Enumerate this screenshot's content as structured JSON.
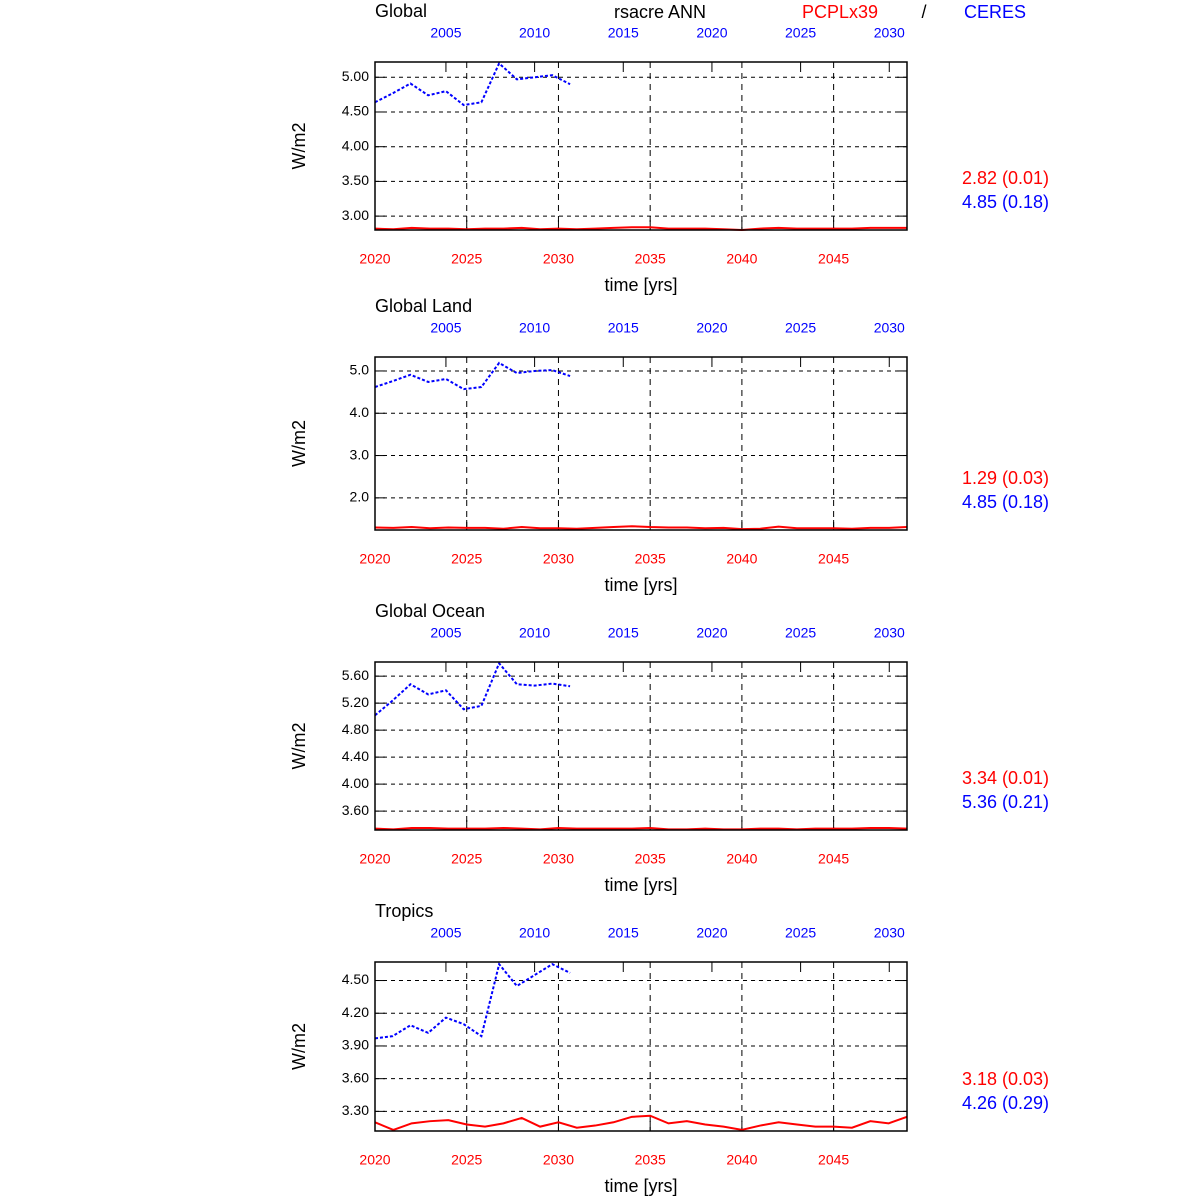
{
  "chart_data": [
    {
      "type": "line",
      "title": "Global",
      "subtitle": "rsacre ANN",
      "legend_separator": "/",
      "ylabel": "W/m2",
      "xlabel": "time [yrs]",
      "grid": true,
      "xlim": [
        2020,
        2049
      ],
      "xticks": [
        2020,
        2025,
        2030,
        2035,
        2040,
        2045
      ],
      "x2lim": [
        2001,
        2031
      ],
      "x2ticks": [
        2005,
        2010,
        2015,
        2020,
        2025,
        2030
      ],
      "ylim": [
        2.8,
        5.22
      ],
      "yticks": [
        {
          "value": 3,
          "label": "3.00"
        },
        {
          "value": 3.5,
          "label": "3.50"
        },
        {
          "value": 4,
          "label": "4.00"
        },
        {
          "value": 4.5,
          "label": "4.50"
        },
        {
          "value": 5,
          "label": "5.00"
        }
      ],
      "series": [
        {
          "name": "PCPLx39",
          "color": "#ff0000",
          "line_style": "solid",
          "x": [
            2020,
            2021,
            2022,
            2023,
            2024,
            2025,
            2026,
            2027,
            2028,
            2029,
            2030,
            2031,
            2032,
            2033,
            2034,
            2035,
            2036,
            2037,
            2038,
            2039,
            2040,
            2041,
            2042,
            2043,
            2044,
            2045,
            2046,
            2047,
            2048,
            2049
          ],
          "values": [
            2.82,
            2.81,
            2.83,
            2.82,
            2.82,
            2.81,
            2.82,
            2.82,
            2.83,
            2.81,
            2.82,
            2.81,
            2.82,
            2.83,
            2.84,
            2.84,
            2.82,
            2.82,
            2.82,
            2.81,
            2.8,
            2.82,
            2.83,
            2.82,
            2.82,
            2.82,
            2.82,
            2.83,
            2.83,
            2.83
          ]
        },
        {
          "name": "CERES",
          "color": "#0000ff",
          "line_style": "dashed",
          "axis": "x2",
          "x": [
            2001,
            2002,
            2003,
            2004,
            2005,
            2006,
            2007,
            2008,
            2009,
            2010,
            2011,
            2012
          ],
          "values": [
            4.64,
            4.77,
            4.91,
            4.74,
            4.8,
            4.6,
            4.64,
            5.2,
            4.97,
            5.0,
            5.03,
            4.9
          ]
        }
      ],
      "stats": [
        {
          "text": "2.82 (0.01)",
          "color": "#ff0000"
        },
        {
          "text": "4.85 (0.18)",
          "color": "#0000ff"
        }
      ]
    },
    {
      "type": "line",
      "title": "Global Land",
      "ylabel": "W/m2",
      "xlabel": "time [yrs]",
      "grid": true,
      "xlim": [
        2020,
        2049
      ],
      "xticks": [
        2020,
        2025,
        2030,
        2035,
        2040,
        2045
      ],
      "x2lim": [
        2001,
        2031
      ],
      "x2ticks": [
        2005,
        2010,
        2015,
        2020,
        2025,
        2030
      ],
      "ylim": [
        1.24,
        5.33
      ],
      "yticks": [
        {
          "value": 2,
          "label": "2.0"
        },
        {
          "value": 3,
          "label": "3.0"
        },
        {
          "value": 4,
          "label": "4.0"
        },
        {
          "value": 5,
          "label": "5.0"
        }
      ],
      "series": [
        {
          "color": "#ff0000",
          "line_style": "solid",
          "x": [
            2020,
            2021,
            2022,
            2023,
            2024,
            2025,
            2026,
            2027,
            2028,
            2029,
            2030,
            2031,
            2032,
            2033,
            2034,
            2035,
            2036,
            2037,
            2038,
            2039,
            2040,
            2041,
            2042,
            2043,
            2044,
            2045,
            2046,
            2047,
            2048,
            2049
          ],
          "values": [
            1.3,
            1.29,
            1.31,
            1.28,
            1.3,
            1.29,
            1.29,
            1.27,
            1.31,
            1.28,
            1.28,
            1.27,
            1.29,
            1.31,
            1.33,
            1.31,
            1.3,
            1.3,
            1.28,
            1.29,
            1.26,
            1.27,
            1.32,
            1.28,
            1.28,
            1.28,
            1.27,
            1.29,
            1.29,
            1.31
          ]
        },
        {
          "color": "#0000ff",
          "line_style": "dashed",
          "axis": "x2",
          "x": [
            2001,
            2002,
            2003,
            2004,
            2005,
            2006,
            2007,
            2008,
            2009,
            2010,
            2011,
            2012
          ],
          "values": [
            4.62,
            4.76,
            4.91,
            4.74,
            4.81,
            4.57,
            4.62,
            5.19,
            4.95,
            5.0,
            5.02,
            4.88
          ]
        }
      ],
      "stats": [
        {
          "text": "1.29 (0.03)",
          "color": "#ff0000"
        },
        {
          "text": "4.85 (0.18)",
          "color": "#0000ff"
        }
      ]
    },
    {
      "type": "line",
      "title": "Global Ocean",
      "ylabel": "W/m2",
      "xlabel": "time [yrs]",
      "grid": true,
      "xlim": [
        2020,
        2049
      ],
      "xticks": [
        2020,
        2025,
        2030,
        2035,
        2040,
        2045
      ],
      "x2lim": [
        2001,
        2031
      ],
      "x2ticks": [
        2005,
        2010,
        2015,
        2020,
        2025,
        2030
      ],
      "ylim": [
        3.32,
        5.81
      ],
      "yticks": [
        {
          "value": 3.6,
          "label": "3.60"
        },
        {
          "value": 4,
          "label": "4.00"
        },
        {
          "value": 4.4,
          "label": "4.40"
        },
        {
          "value": 4.8,
          "label": "4.80"
        },
        {
          "value": 5.2,
          "label": "5.20"
        },
        {
          "value": 5.6,
          "label": "5.60"
        }
      ],
      "series": [
        {
          "color": "#ff0000",
          "line_style": "solid",
          "x": [
            2020,
            2021,
            2022,
            2023,
            2024,
            2025,
            2026,
            2027,
            2028,
            2029,
            2030,
            2031,
            2032,
            2033,
            2034,
            2035,
            2036,
            2037,
            2038,
            2039,
            2040,
            2041,
            2042,
            2043,
            2044,
            2045,
            2046,
            2047,
            2048,
            2049
          ],
          "values": [
            3.34,
            3.33,
            3.35,
            3.35,
            3.34,
            3.34,
            3.34,
            3.35,
            3.34,
            3.33,
            3.35,
            3.34,
            3.34,
            3.34,
            3.34,
            3.35,
            3.33,
            3.33,
            3.34,
            3.33,
            3.33,
            3.34,
            3.34,
            3.33,
            3.34,
            3.34,
            3.34,
            3.35,
            3.35,
            3.34
          ]
        },
        {
          "color": "#0000ff",
          "line_style": "dashed",
          "axis": "x2",
          "x": [
            2001,
            2002,
            2003,
            2004,
            2005,
            2006,
            2007,
            2008,
            2009,
            2010,
            2011,
            2012
          ],
          "values": [
            5.02,
            5.24,
            5.48,
            5.33,
            5.39,
            5.11,
            5.16,
            5.79,
            5.48,
            5.46,
            5.49,
            5.45
          ]
        }
      ],
      "stats": [
        {
          "text": "3.34 (0.01)",
          "color": "#ff0000"
        },
        {
          "text": "5.36 (0.21)",
          "color": "#0000ff"
        }
      ]
    },
    {
      "type": "line",
      "title": "Tropics",
      "ylabel": "W/m2",
      "xlabel": "time [yrs]",
      "grid": true,
      "xlim": [
        2020,
        2049
      ],
      "xticks": [
        2020,
        2025,
        2030,
        2035,
        2040,
        2045
      ],
      "x2lim": [
        2001,
        2031
      ],
      "x2ticks": [
        2005,
        2010,
        2015,
        2020,
        2025,
        2030
      ],
      "ylim": [
        3.12,
        4.67
      ],
      "yticks": [
        {
          "value": 3.3,
          "label": "3.30"
        },
        {
          "value": 3.6,
          "label": "3.60"
        },
        {
          "value": 3.9,
          "label": "3.90"
        },
        {
          "value": 4.2,
          "label": "4.20"
        },
        {
          "value": 4.5,
          "label": "4.50"
        }
      ],
      "series": [
        {
          "color": "#ff0000",
          "line_style": "solid",
          "x": [
            2020,
            2021,
            2022,
            2023,
            2024,
            2025,
            2026,
            2027,
            2028,
            2029,
            2030,
            2031,
            2032,
            2033,
            2034,
            2035,
            2036,
            2037,
            2038,
            2039,
            2040,
            2041,
            2042,
            2043,
            2044,
            2045,
            2046,
            2047,
            2048,
            2049
          ],
          "values": [
            3.2,
            3.13,
            3.19,
            3.21,
            3.22,
            3.18,
            3.16,
            3.19,
            3.24,
            3.16,
            3.2,
            3.15,
            3.17,
            3.2,
            3.25,
            3.26,
            3.19,
            3.21,
            3.18,
            3.16,
            3.13,
            3.17,
            3.2,
            3.18,
            3.16,
            3.16,
            3.15,
            3.21,
            3.19,
            3.25
          ]
        },
        {
          "color": "#0000ff",
          "line_style": "dashed",
          "axis": "x2",
          "x": [
            2001,
            2002,
            2003,
            2004,
            2005,
            2006,
            2007,
            2008,
            2009,
            2010,
            2011,
            2012
          ],
          "values": [
            3.97,
            3.99,
            4.09,
            4.02,
            4.16,
            4.1,
            3.99,
            4.65,
            4.45,
            4.55,
            4.65,
            4.57
          ]
        }
      ],
      "stats": [
        {
          "text": "3.18 (0.03)",
          "color": "#ff0000"
        },
        {
          "text": "4.26 (0.29)",
          "color": "#0000ff"
        }
      ]
    }
  ]
}
